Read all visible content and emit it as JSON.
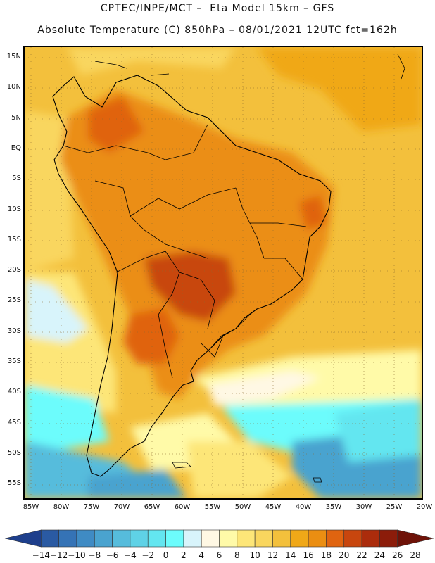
{
  "header": {
    "line1": "CPTEC/INPE/MCT –  Eta Model 15km – GFS",
    "line2": "Absolute Temperature (C) 850hPa – 08/01/2021 12UTC fct=162h"
  },
  "map": {
    "lat_labels": [
      "15N",
      "10N",
      "5N",
      "EQ",
      "5S",
      "10S",
      "15S",
      "20S",
      "25S",
      "30S",
      "35S",
      "40S",
      "45S",
      "50S",
      "55S"
    ],
    "lon_labels": [
      "85W",
      "80W",
      "75W",
      "70W",
      "65W",
      "60W",
      "55W",
      "50W",
      "45W",
      "40W",
      "35W",
      "30W",
      "25W",
      "20W"
    ]
  },
  "colorbar": {
    "labels": [
      "-14",
      "-12",
      "-10",
      "-8",
      "-6",
      "-4",
      "-2",
      "0",
      "2",
      "4",
      "6",
      "8",
      "10",
      "12",
      "14",
      "16",
      "18",
      "20",
      "22",
      "24",
      "26",
      "28"
    ],
    "colors": [
      "#1e3f8c",
      "#2a5aa3",
      "#3573b6",
      "#3f8bc4",
      "#4aa3cf",
      "#56bcdc",
      "#5fd2e6",
      "#63e6f0",
      "#6cfcfc",
      "#d8f4fb",
      "#fff8e4",
      "#fffaa8",
      "#fde678",
      "#f9d65e",
      "#f3c03c",
      "#f0a818",
      "#eb8e12",
      "#e06410",
      "#c8460e",
      "#ab2c0c",
      "#8c1c0a",
      "#6e1208"
    ]
  }
}
